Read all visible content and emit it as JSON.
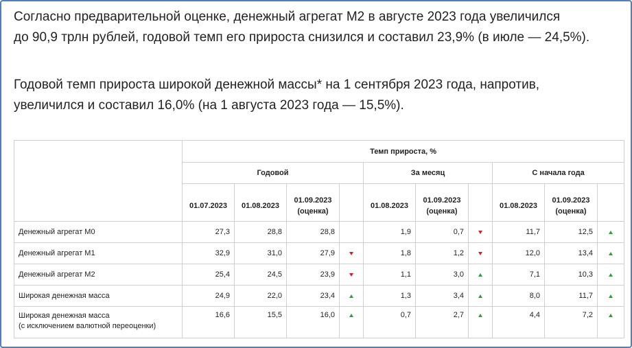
{
  "text": {
    "para1_line1": "Согласно предварительной оценке, денежный агрегат М2 в августе 2023 года увеличился",
    "para1_line2": "до 90,9 трлн рублей, годовой темп его прироста снизился и составил 23,9% (в июле — 24,5%).",
    "para2_line1": "Годовой темп прироста широкой денежной массы* на 1 сентября 2023 года, напротив,",
    "para2_line2": "увеличился и составил 16,0% (на 1 августа 2023 года — 15,5%)."
  },
  "table": {
    "top_header": "Темп прироста, %",
    "groups": [
      "Годовой",
      "За месяц",
      "С начала года"
    ],
    "col_annual": [
      "01.07.2023",
      "01.08.2023",
      "01.09.2023",
      "(оценка)"
    ],
    "col_month": [
      "01.08.2023",
      "01.09.2023",
      "(оценка)"
    ],
    "col_ytd": [
      "01.08.2023",
      "01.09.2023",
      "(оценка)"
    ],
    "rows": [
      {
        "label": "Денежный агрегат М0",
        "label2": "",
        "annual": [
          "27,3",
          "28,8",
          "28,8"
        ],
        "annual_trend": "none",
        "month": [
          "1,9",
          "0,7"
        ],
        "month_trend": "down",
        "ytd": [
          "11,7",
          "12,5"
        ],
        "ytd_trend": "up"
      },
      {
        "label": "Денежный агрегат М1",
        "label2": "",
        "annual": [
          "32,9",
          "31,0",
          "27,9"
        ],
        "annual_trend": "down",
        "month": [
          "1,8",
          "1,2"
        ],
        "month_trend": "down",
        "ytd": [
          "12,0",
          "13,4"
        ],
        "ytd_trend": "up"
      },
      {
        "label": "Денежный агрегат М2",
        "label2": "",
        "annual": [
          "25,4",
          "24,5",
          "23,9"
        ],
        "annual_trend": "down",
        "month": [
          "1,1",
          "3,0"
        ],
        "month_trend": "up",
        "ytd": [
          "7,1",
          "10,3"
        ],
        "ytd_trend": "up"
      },
      {
        "label": "Широкая денежная масса",
        "label2": "",
        "annual": [
          "24,9",
          "22,0",
          "23,4"
        ],
        "annual_trend": "up",
        "month": [
          "1,3",
          "3,4"
        ],
        "month_trend": "up",
        "ytd": [
          "8,0",
          "11,7"
        ],
        "ytd_trend": "up"
      },
      {
        "label": "Широкая денежная масса",
        "label2": "(с исключением валютной переоценки)",
        "annual": [
          "16,6",
          "15,5",
          "16,0"
        ],
        "annual_trend": "up",
        "month": [
          "0,7",
          "2,7"
        ],
        "month_trend": "up",
        "ytd": [
          "4,4",
          "7,2"
        ],
        "ytd_trend": "up"
      }
    ]
  },
  "colors": {
    "border": "#4f7fc2",
    "up": "#2e9e3e",
    "down": "#d0202c",
    "grid": "#d0d0d0"
  }
}
